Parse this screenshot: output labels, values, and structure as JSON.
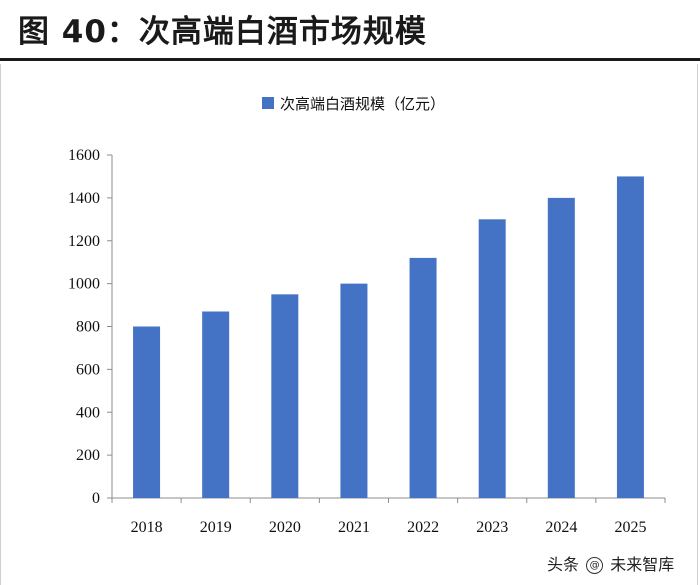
{
  "page": {
    "title": "图 40：次高端白酒市场规模",
    "watermark_prefix": "头条",
    "watermark_name": "未来智库"
  },
  "colors": {
    "bar": "#4472C4",
    "axis": "#8c8c8c"
  },
  "chart_data": {
    "type": "bar",
    "title": "",
    "legend": [
      "次高端白酒规模（亿元）"
    ],
    "legend_position": "top",
    "categories": [
      "2018",
      "2019",
      "2020",
      "2021",
      "2022",
      "2023",
      "2024",
      "2025"
    ],
    "series": [
      {
        "name": "次高端白酒规模（亿元）",
        "values": [
          800,
          870,
          950,
          1000,
          1120,
          1300,
          1400,
          1500
        ]
      }
    ],
    "xlabel": "",
    "ylabel": "",
    "ylim": [
      0,
      1600
    ],
    "yticks": [
      0,
      200,
      400,
      600,
      800,
      1000,
      1200,
      1400,
      1600
    ],
    "grid": false
  }
}
